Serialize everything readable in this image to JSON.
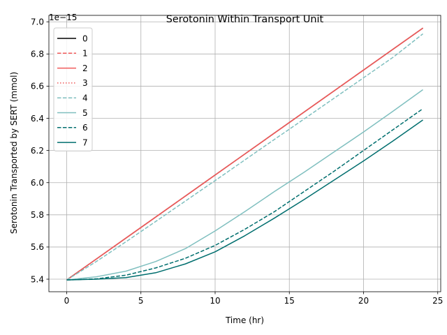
{
  "chart_data": {
    "type": "line",
    "title": "Serotonin Within Transport Unit",
    "xlabel": "Time (hr)",
    "ylabel": "Serotonin Transported by SERT (mmol)",
    "y_scale_label": "1e−15",
    "xlim": [
      -1.2,
      25.2
    ],
    "ylim": [
      5.322,
      7.04
    ],
    "x_ticks": [
      0,
      5,
      10,
      15,
      20,
      25
    ],
    "x_tick_labels": [
      "0",
      "5",
      "10",
      "15",
      "20",
      "25"
    ],
    "y_ticks": [
      5.4,
      5.6,
      5.8,
      6.0,
      6.2,
      6.4,
      6.6,
      6.8,
      7.0
    ],
    "y_tick_labels": [
      "5.4",
      "5.6",
      "5.8",
      "6.0",
      "6.2",
      "6.4",
      "6.6",
      "6.8",
      "7.0"
    ],
    "grid": true,
    "legend_position": "upper-left",
    "series": [
      {
        "name": "0",
        "color": "#000000",
        "dash": "solid",
        "x": [
          0,
          4,
          8,
          12,
          16,
          20,
          24
        ],
        "values": [
          5.395,
          5.656,
          5.917,
          6.178,
          6.439,
          6.7,
          6.961
        ]
      },
      {
        "name": "1",
        "color": "#f05a5a",
        "dash": "dashed",
        "x": [
          0,
          4,
          8,
          12,
          16,
          20,
          24
        ],
        "values": [
          5.395,
          5.656,
          5.917,
          6.178,
          6.439,
          6.7,
          6.961
        ]
      },
      {
        "name": "2",
        "color": "#f05a5a",
        "dash": "solid",
        "x": [
          0,
          4,
          8,
          12,
          16,
          20,
          24
        ],
        "values": [
          5.395,
          5.656,
          5.917,
          6.178,
          6.439,
          6.7,
          6.961
        ]
      },
      {
        "name": "3",
        "color": "#f05a5a",
        "dash": "dotted",
        "x": [
          0,
          4,
          8,
          12,
          16,
          20,
          24
        ],
        "values": [
          5.395,
          5.656,
          5.917,
          6.178,
          6.439,
          6.7,
          6.961
        ]
      },
      {
        "name": "4",
        "color": "#7fbfbf",
        "dash": "dashed",
        "x": [
          0,
          2,
          4,
          6,
          8,
          10,
          12,
          14,
          16,
          18,
          20,
          22,
          24
        ],
        "values": [
          5.395,
          5.51,
          5.633,
          5.759,
          5.886,
          6.013,
          6.141,
          6.269,
          6.396,
          6.524,
          6.652,
          6.78,
          6.925
        ]
      },
      {
        "name": "5",
        "color": "#7fbfbf",
        "dash": "solid",
        "x": [
          0,
          2,
          4,
          6,
          8,
          10,
          12,
          14,
          16,
          18,
          20,
          22,
          24
        ],
        "values": [
          5.395,
          5.415,
          5.45,
          5.51,
          5.59,
          5.7,
          5.82,
          5.945,
          6.065,
          6.19,
          6.315,
          6.445,
          6.578
        ]
      },
      {
        "name": "6",
        "color": "#006e6e",
        "dash": "dashed",
        "x": [
          0,
          2,
          4,
          6,
          8,
          10,
          12,
          14,
          16,
          18,
          20,
          22,
          24
        ],
        "values": [
          5.395,
          5.402,
          5.425,
          5.47,
          5.53,
          5.61,
          5.71,
          5.82,
          5.945,
          6.07,
          6.2,
          6.33,
          6.46
        ]
      },
      {
        "name": "7",
        "color": "#006e6e",
        "dash": "solid",
        "x": [
          0,
          2,
          4,
          6,
          8,
          10,
          12,
          14,
          16,
          18,
          20,
          22,
          24
        ],
        "values": [
          5.395,
          5.4,
          5.41,
          5.44,
          5.495,
          5.57,
          5.67,
          5.78,
          5.895,
          6.015,
          6.135,
          6.26,
          6.39
        ]
      }
    ]
  }
}
